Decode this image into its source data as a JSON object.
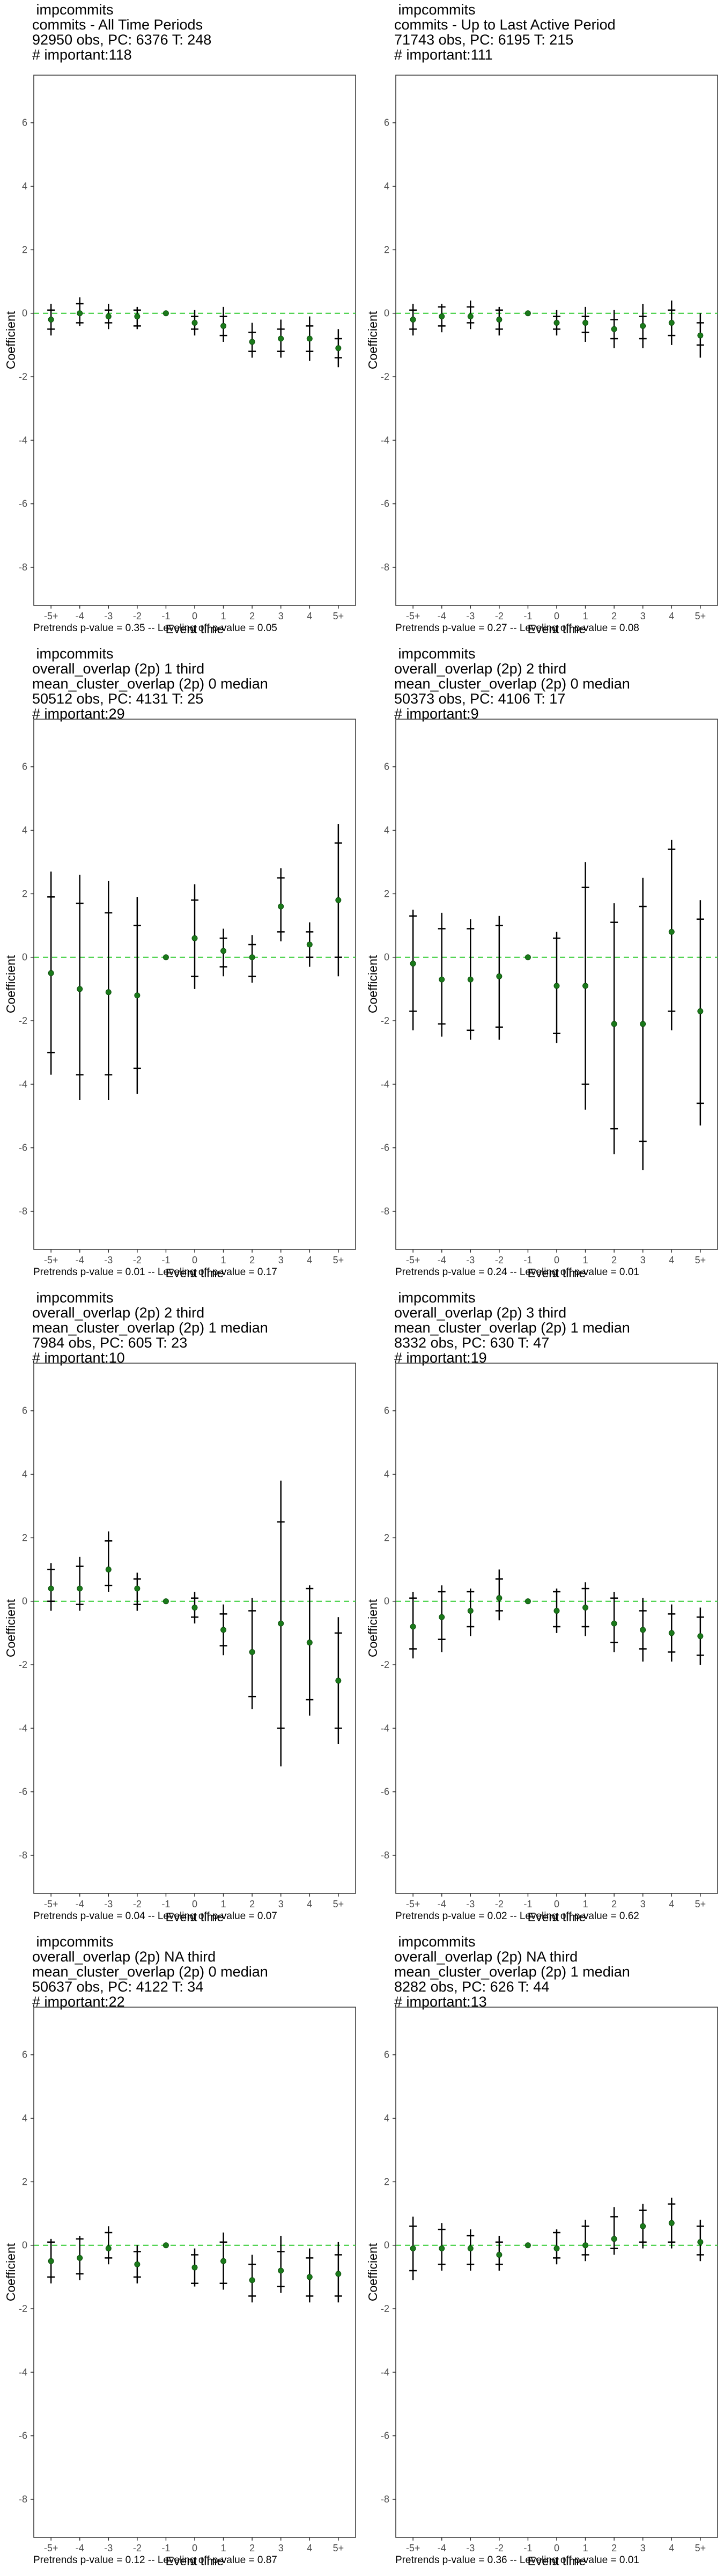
{
  "common": {
    "xlabel": "Event time",
    "ylabel": "Coefficient",
    "x_ticks": [
      "-5+",
      "-4",
      "-3",
      "-2",
      "-1",
      "0",
      "1",
      "2",
      "3",
      "4",
      "5+"
    ],
    "y_ticks": [
      6,
      4,
      2,
      0,
      -2,
      -4,
      -6,
      -8
    ],
    "colors": {
      "point": "#1a7a1a",
      "zero_line": "#33cc33",
      "errorbar": "#000000",
      "frame": "#333333"
    }
  },
  "panels": [
    {
      "title": [
        "impcommits",
        "commits - All Time Periods",
        "92950 obs, PC: 6376 T: 248",
        "# important:118"
      ],
      "footer": "Pretrends p-value = 0.35 -- Leveling off p-value = 0.05"
    },
    {
      "title": [
        "impcommits",
        "commits - Up to Last Active Period",
        "71743 obs, PC: 6195 T: 215",
        "# important:111"
      ],
      "footer": "Pretrends p-value = 0.27 -- Leveling off p-value = 0.08"
    },
    {
      "title": [
        "impcommits",
        "overall_overlap (2p) 1 third",
        "mean_cluster_overlap (2p) 0 median",
        "50512 obs, PC: 4131 T: 25",
        "# important:29"
      ],
      "footer": "Pretrends p-value = 0.01 -- Leveling off p-value = 0.17"
    },
    {
      "title": [
        "impcommits",
        "overall_overlap (2p) 2 third",
        "mean_cluster_overlap (2p) 0 median",
        "50373 obs, PC: 4106 T: 17",
        "# important:9"
      ],
      "footer": "Pretrends p-value = 0.24 -- Leveling off p-value = 0.01"
    },
    {
      "title": [
        "impcommits",
        "overall_overlap (2p) 2 third",
        "mean_cluster_overlap (2p) 1 median",
        "7984 obs, PC: 605 T: 23",
        "# important:10"
      ],
      "footer": "Pretrends p-value = 0.04 -- Leveling off p-value = 0.07"
    },
    {
      "title": [
        "impcommits",
        "overall_overlap (2p) 3 third",
        "mean_cluster_overlap (2p) 1 median",
        "8332 obs, PC: 630 T: 47",
        "# important:19"
      ],
      "footer": "Pretrends p-value = 0.02 -- Leveling off p-value = 0.62"
    },
    {
      "title": [
        "impcommits",
        "overall_overlap (2p) NA third",
        "mean_cluster_overlap (2p) 0 median",
        "50637 obs, PC: 4122 T: 34",
        "# important:22"
      ],
      "footer": "Pretrends p-value = 0.12 -- Leveling off p-value = 0.87"
    },
    {
      "title": [
        "impcommits",
        "overall_overlap (2p) NA third",
        "mean_cluster_overlap (2p) 1 median",
        "8282 obs, PC: 626 T: 44",
        "# important:13"
      ],
      "footer": "Pretrends p-value = 0.36 -- Leveling off p-value = 0.01"
    }
  ],
  "chart_data": [
    {
      "type": "scatter",
      "xlabel": "Event time",
      "ylabel": "Coefficient",
      "ylim": [
        -9.2,
        7.5
      ],
      "grid": false,
      "categories": [
        "-5+",
        "-4",
        "-3",
        "-2",
        "-1",
        "0",
        "1",
        "2",
        "3",
        "4",
        "5+"
      ],
      "estimate": [
        -0.2,
        0.0,
        -0.1,
        -0.1,
        0.0,
        -0.3,
        -0.4,
        -0.9,
        -0.8,
        -0.8,
        -1.1
      ],
      "ci_outer": [
        [
          -0.7,
          0.3
        ],
        [
          -0.4,
          0.5
        ],
        [
          -0.5,
          0.3
        ],
        [
          -0.5,
          0.2
        ],
        [
          0,
          0
        ],
        [
          -0.7,
          0.1
        ],
        [
          -0.9,
          0.2
        ],
        [
          -1.4,
          -0.3
        ],
        [
          -1.4,
          -0.2
        ],
        [
          -1.5,
          -0.1
        ],
        [
          -1.7,
          -0.5
        ]
      ],
      "ci_inner": [
        [
          -0.5,
          0.1
        ],
        [
          -0.3,
          0.3
        ],
        [
          -0.3,
          0.1
        ],
        [
          -0.4,
          0.1
        ],
        [
          0,
          0
        ],
        [
          -0.5,
          -0.1
        ],
        [
          -0.7,
          -0.1
        ],
        [
          -1.2,
          -0.6
        ],
        [
          -1.2,
          -0.5
        ],
        [
          -1.2,
          -0.4
        ],
        [
          -1.4,
          -0.8
        ]
      ]
    },
    {
      "type": "scatter",
      "xlabel": "Event time",
      "ylabel": "Coefficient",
      "ylim": [
        -9.2,
        7.5
      ],
      "grid": false,
      "categories": [
        "-5+",
        "-4",
        "-3",
        "-2",
        "-1",
        "0",
        "1",
        "2",
        "3",
        "4",
        "5+"
      ],
      "estimate": [
        -0.2,
        -0.1,
        -0.1,
        -0.2,
        0.0,
        -0.3,
        -0.3,
        -0.5,
        -0.4,
        -0.3,
        -0.7
      ],
      "ci_outer": [
        [
          -0.7,
          0.3
        ],
        [
          -0.6,
          0.3
        ],
        [
          -0.5,
          0.4
        ],
        [
          -0.7,
          0.2
        ],
        [
          0,
          0
        ],
        [
          -0.7,
          0.1
        ],
        [
          -0.9,
          0.2
        ],
        [
          -1.1,
          0.1
        ],
        [
          -1.1,
          0.3
        ],
        [
          -1.0,
          0.4
        ],
        [
          -1.4,
          0.0
        ]
      ],
      "ci_inner": [
        [
          -0.5,
          0.1
        ],
        [
          -0.4,
          0.2
        ],
        [
          -0.3,
          0.2
        ],
        [
          -0.5,
          0.1
        ],
        [
          0,
          0
        ],
        [
          -0.5,
          -0.1
        ],
        [
          -0.6,
          -0.1
        ],
        [
          -0.8,
          -0.2
        ],
        [
          -0.8,
          -0.1
        ],
        [
          -0.7,
          0.1
        ],
        [
          -1.0,
          -0.3
        ]
      ]
    },
    {
      "type": "scatter",
      "xlabel": "Event time",
      "ylabel": "Coefficient",
      "ylim": [
        -9.2,
        7.5
      ],
      "grid": false,
      "categories": [
        "-5+",
        "-4",
        "-3",
        "-2",
        "-1",
        "0",
        "1",
        "2",
        "3",
        "4",
        "5+"
      ],
      "estimate": [
        -0.5,
        -1.0,
        -1.1,
        -1.2,
        0.0,
        0.6,
        0.2,
        0.0,
        1.6,
        0.4,
        1.8
      ],
      "ci_outer": [
        [
          -3.7,
          2.7
        ],
        [
          -4.5,
          2.6
        ],
        [
          -4.5,
          2.4
        ],
        [
          -4.3,
          1.9
        ],
        [
          0,
          0
        ],
        [
          -1.0,
          2.3
        ],
        [
          -0.6,
          0.9
        ],
        [
          -0.8,
          0.7
        ],
        [
          0.5,
          2.8
        ],
        [
          -0.3,
          1.1
        ],
        [
          -0.6,
          4.2
        ]
      ],
      "ci_inner": [
        [
          -3.0,
          1.9
        ],
        [
          -3.7,
          1.7
        ],
        [
          -3.7,
          1.4
        ],
        [
          -3.5,
          1.0
        ],
        [
          0,
          0
        ],
        [
          -0.6,
          1.8
        ],
        [
          -0.3,
          0.6
        ],
        [
          -0.6,
          0.4
        ],
        [
          0.8,
          2.5
        ],
        [
          0.0,
          0.8
        ],
        [
          0.0,
          3.6
        ]
      ]
    },
    {
      "type": "scatter",
      "xlabel": "Event time",
      "ylabel": "Coefficient",
      "ylim": [
        -9.2,
        7.5
      ],
      "grid": false,
      "categories": [
        "-5+",
        "-4",
        "-3",
        "-2",
        "-1",
        "0",
        "1",
        "2",
        "3",
        "4",
        "5+"
      ],
      "estimate": [
        -0.2,
        -0.7,
        -0.7,
        -0.6,
        0.0,
        -0.9,
        -0.9,
        -2.1,
        -2.1,
        0.8,
        -1.7
      ],
      "ci_outer": [
        [
          -2.3,
          1.5
        ],
        [
          -2.5,
          1.4
        ],
        [
          -2.6,
          1.2
        ],
        [
          -2.6,
          1.3
        ],
        [
          0,
          0
        ],
        [
          -2.7,
          0.8
        ],
        [
          -4.8,
          3.0
        ],
        [
          -6.2,
          1.7
        ],
        [
          -6.7,
          2.5
        ],
        [
          -2.3,
          3.7
        ],
        [
          -5.3,
          1.8
        ]
      ],
      "ci_inner": [
        [
          -1.7,
          1.3
        ],
        [
          -2.1,
          0.9
        ],
        [
          -2.3,
          0.9
        ],
        [
          -2.2,
          1.0
        ],
        [
          0,
          0
        ],
        [
          -2.4,
          0.6
        ],
        [
          -4.0,
          2.2
        ],
        [
          -5.4,
          1.1
        ],
        [
          -5.8,
          1.6
        ],
        [
          -1.7,
          3.4
        ],
        [
          -4.6,
          1.2
        ]
      ]
    },
    {
      "type": "scatter",
      "xlabel": "Event time",
      "ylabel": "Coefficient",
      "ylim": [
        -9.2,
        7.5
      ],
      "grid": false,
      "categories": [
        "-5+",
        "-4",
        "-3",
        "-2",
        "-1",
        "0",
        "1",
        "2",
        "3",
        "4",
        "5+"
      ],
      "estimate": [
        0.4,
        0.4,
        1.0,
        0.4,
        0.0,
        -0.2,
        -0.9,
        -1.6,
        -0.7,
        -1.3,
        -2.5
      ],
      "ci_outer": [
        [
          -0.3,
          1.2
        ],
        [
          -0.3,
          1.4
        ],
        [
          0.3,
          2.2
        ],
        [
          -0.3,
          0.9
        ],
        [
          0,
          0
        ],
        [
          -0.7,
          0.3
        ],
        [
          -1.7,
          -0.1
        ],
        [
          -3.4,
          0.1
        ],
        [
          -5.2,
          3.8
        ],
        [
          -3.6,
          0.5
        ],
        [
          -4.5,
          -0.5
        ]
      ],
      "ci_inner": [
        [
          0.0,
          1.0
        ],
        [
          -0.1,
          1.1
        ],
        [
          0.5,
          1.9
        ],
        [
          -0.1,
          0.7
        ],
        [
          0,
          0
        ],
        [
          -0.5,
          0.1
        ],
        [
          -1.4,
          -0.4
        ],
        [
          -3.0,
          -0.3
        ],
        [
          -4.0,
          2.5
        ],
        [
          -3.1,
          0.4
        ],
        [
          -4.0,
          -1.0
        ]
      ]
    },
    {
      "type": "scatter",
      "xlabel": "Event time",
      "ylabel": "Coefficient",
      "ylim": [
        -9.2,
        7.5
      ],
      "grid": false,
      "categories": [
        "-5+",
        "-4",
        "-3",
        "-2",
        "-1",
        "0",
        "1",
        "2",
        "3",
        "4",
        "5+"
      ],
      "estimate": [
        -0.8,
        -0.5,
        -0.3,
        0.1,
        0.0,
        -0.3,
        -0.2,
        -0.7,
        -0.9,
        -1.0,
        -1.1
      ],
      "ci_outer": [
        [
          -1.8,
          0.3
        ],
        [
          -1.6,
          0.5
        ],
        [
          -1.1,
          0.4
        ],
        [
          -0.6,
          1.0
        ],
        [
          0,
          0
        ],
        [
          -1.0,
          0.4
        ],
        [
          -1.1,
          0.6
        ],
        [
          -1.6,
          0.3
        ],
        [
          -1.9,
          0.1
        ],
        [
          -1.9,
          -0.1
        ],
        [
          -2.0,
          -0.2
        ]
      ],
      "ci_inner": [
        [
          -1.5,
          0.1
        ],
        [
          -1.2,
          0.3
        ],
        [
          -0.8,
          0.3
        ],
        [
          -0.3,
          0.7
        ],
        [
          0,
          0
        ],
        [
          -0.8,
          0.3
        ],
        [
          -0.8,
          0.4
        ],
        [
          -1.3,
          0.1
        ],
        [
          -1.5,
          -0.3
        ],
        [
          -1.6,
          -0.4
        ],
        [
          -1.7,
          -0.5
        ]
      ]
    },
    {
      "type": "scatter",
      "xlabel": "Event time",
      "ylabel": "Coefficient",
      "ylim": [
        -9.2,
        7.5
      ],
      "grid": false,
      "categories": [
        "-5+",
        "-4",
        "-3",
        "-2",
        "-1",
        "0",
        "1",
        "2",
        "3",
        "4",
        "5+"
      ],
      "estimate": [
        -0.5,
        -0.4,
        -0.1,
        -0.6,
        0.0,
        -0.7,
        -0.5,
        -1.1,
        -0.8,
        -1.0,
        -0.9
      ],
      "ci_outer": [
        [
          -1.2,
          0.2
        ],
        [
          -1.1,
          0.3
        ],
        [
          -0.6,
          0.6
        ],
        [
          -1.2,
          0.0
        ],
        [
          0,
          0
        ],
        [
          -1.3,
          -0.1
        ],
        [
          -1.4,
          0.4
        ],
        [
          -1.8,
          -0.3
        ],
        [
          -1.5,
          0.3
        ],
        [
          -1.8,
          -0.1
        ],
        [
          -1.8,
          0.1
        ]
      ],
      "ci_inner": [
        [
          -1.0,
          0.1
        ],
        [
          -0.9,
          0.2
        ],
        [
          -0.4,
          0.4
        ],
        [
          -1.0,
          -0.2
        ],
        [
          0,
          0
        ],
        [
          -1.2,
          -0.3
        ],
        [
          -1.2,
          0.1
        ],
        [
          -1.6,
          -0.6
        ],
        [
          -1.3,
          -0.2
        ],
        [
          -1.6,
          -0.4
        ],
        [
          -1.6,
          -0.3
        ]
      ]
    },
    {
      "type": "scatter",
      "xlabel": "Event time",
      "ylabel": "Coefficient",
      "ylim": [
        -9.2,
        7.5
      ],
      "grid": false,
      "categories": [
        "-5+",
        "-4",
        "-3",
        "-2",
        "-1",
        "0",
        "1",
        "2",
        "3",
        "4",
        "5+"
      ],
      "estimate": [
        -0.1,
        -0.1,
        -0.1,
        -0.3,
        0.0,
        -0.1,
        0.0,
        0.2,
        0.6,
        0.7,
        0.1
      ],
      "ci_outer": [
        [
          -1.1,
          0.9
        ],
        [
          -0.8,
          0.7
        ],
        [
          -0.8,
          0.5
        ],
        [
          -0.8,
          0.3
        ],
        [
          0,
          0
        ],
        [
          -0.6,
          0.5
        ],
        [
          -0.5,
          0.8
        ],
        [
          -0.3,
          1.2
        ],
        [
          -0.1,
          1.3
        ],
        [
          -0.1,
          1.5
        ],
        [
          -0.5,
          0.8
        ]
      ],
      "ci_inner": [
        [
          -0.8,
          0.6
        ],
        [
          -0.6,
          0.5
        ],
        [
          -0.6,
          0.3
        ],
        [
          -0.6,
          0.1
        ],
        [
          0,
          0
        ],
        [
          -0.4,
          0.4
        ],
        [
          -0.3,
          0.6
        ],
        [
          -0.1,
          0.9
        ],
        [
          0.1,
          1.1
        ],
        [
          0.1,
          1.3
        ],
        [
          -0.3,
          0.6
        ]
      ]
    }
  ]
}
